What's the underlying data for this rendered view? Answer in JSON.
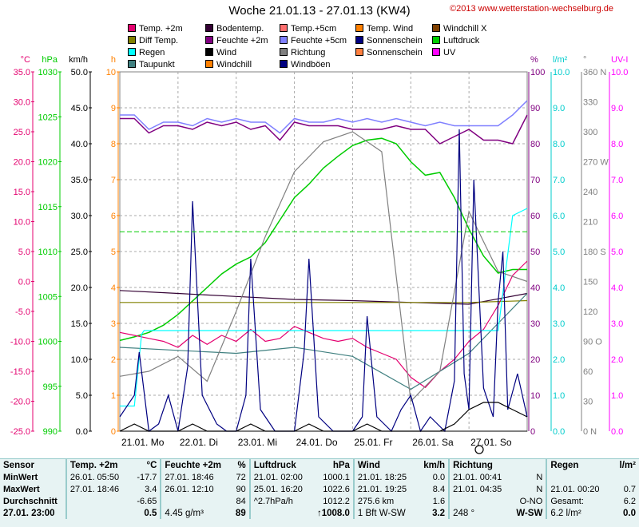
{
  "header": {
    "title": "Woche 21.01.13 - 27.01.13 (KW4)",
    "copyright": "©2013 www.wetterstation-wechselburg.de"
  },
  "legend": [
    {
      "label": "Temp. +2m",
      "color": "#e4006f"
    },
    {
      "label": "Bodentemp.",
      "color": "#330033"
    },
    {
      "label": "Temp.+5cm",
      "color": "#ff6f6f"
    },
    {
      "label": "Temp. Wind",
      "color": "#ff8000"
    },
    {
      "label": "Windchill X",
      "color": "#804000"
    },
    {
      "label": "Diff Temp.",
      "color": "#808000"
    },
    {
      "label": "Feuchte +2m",
      "color": "#800080"
    },
    {
      "label": "Feuchte +5cm",
      "color": "#8080ff"
    },
    {
      "label": "Sonnenschein",
      "color": "#000080"
    },
    {
      "label": "Luftdruck",
      "color": "#00cc00"
    },
    {
      "label": "Regen",
      "color": "#00ffff"
    },
    {
      "label": "Wind",
      "color": "#000000"
    },
    {
      "label": "Richtung",
      "color": "#808080"
    },
    {
      "label": "Sonnenschein",
      "color": "#ff8040"
    },
    {
      "label": "UV",
      "color": "#ff00ff"
    },
    {
      "label": "Taupunkt",
      "color": "#408080"
    },
    {
      "label": "Windchill",
      "color": "#ff8000"
    },
    {
      "label": "Windböen",
      "color": "#000080"
    }
  ],
  "axes": {
    "left": [
      {
        "unit": "°C",
        "color": "#e4006f",
        "ticks": [
          "35.0",
          "30.0",
          "25.0",
          "20.0",
          "15.0",
          "10.0",
          "5.0",
          "0.0",
          "-5.0",
          "-10.0",
          "-15.0",
          "-20.0",
          "-25.0"
        ]
      },
      {
        "unit": "hPa",
        "color": "#00cc00",
        "ticks": [
          "1030",
          "1025",
          "1020",
          "1015",
          "1010",
          "1005",
          "1000",
          "995",
          "990"
        ]
      },
      {
        "unit": "km/h",
        "color": "#000000",
        "ticks": [
          "50.0",
          "45.0",
          "40.0",
          "35.0",
          "30.0",
          "25.0",
          "20.0",
          "15.0",
          "10.0",
          "5.0",
          "0.0"
        ]
      },
      {
        "unit": "h",
        "color": "#ff8000",
        "ticks": [
          "10",
          "9",
          "8",
          "7",
          "6",
          "5",
          "4",
          "3",
          "2",
          "1",
          "0"
        ]
      }
    ],
    "right": [
      {
        "unit": "%",
        "color": "#800080",
        "ticks": [
          "100",
          "90",
          "80",
          "70",
          "60",
          "50",
          "40",
          "30",
          "20",
          "10",
          "0"
        ]
      },
      {
        "unit": "l/m²",
        "color": "#00cccc",
        "ticks": [
          "10.0",
          "9.0",
          "8.0",
          "7.0",
          "6.0",
          "5.0",
          "4.0",
          "3.0",
          "2.0",
          "1.0",
          "0.0"
        ]
      },
      {
        "unit": "°",
        "color": "#808080",
        "ticks": [
          "360 N",
          "330",
          "300",
          "270 W",
          "240",
          "210",
          "180 S",
          "150",
          "120",
          "90 O",
          "60",
          "30",
          "0 N"
        ]
      },
      {
        "unit": "UV-I",
        "color": "#ff00ff",
        "ticks": [
          "10.0",
          "9.0",
          "8.0",
          "7.0",
          "6.0",
          "5.0",
          "4.0",
          "3.0",
          "2.0",
          "1.0",
          "0.0"
        ]
      }
    ],
    "x": [
      "21.01. Mo",
      "22.01. Di",
      "23.01. Mi",
      "24.01. Do",
      "25.01. Fr",
      "26.01. Sa",
      "27.01. So"
    ]
  },
  "chart_data": {
    "type": "line",
    "title": "Woche 21.01.13 - 27.01.13 (KW4)",
    "x_range": [
      "21.01.13 00:00",
      "27.01.13 23:00"
    ],
    "x_unit": "hours since 21.01.13 00:00",
    "series": [
      {
        "name": "Feuchte +5cm",
        "axis": "%",
        "color": "#8080ff",
        "x": [
          0,
          6,
          12,
          18,
          24,
          30,
          36,
          42,
          48,
          54,
          60,
          66,
          72,
          78,
          84,
          90,
          96,
          102,
          108,
          114,
          120,
          126,
          132,
          138,
          144,
          150,
          156,
          162,
          168
        ],
        "y": [
          88,
          88,
          84,
          86,
          86,
          85,
          87,
          86,
          87,
          86,
          86,
          83,
          87,
          86,
          86,
          87,
          86,
          87,
          86,
          87,
          86,
          85,
          86,
          85,
          85,
          85,
          85,
          88,
          92
        ]
      },
      {
        "name": "Feuchte +2m",
        "axis": "%",
        "color": "#800080",
        "x": [
          0,
          6,
          12,
          18,
          24,
          30,
          36,
          42,
          48,
          54,
          60,
          66,
          72,
          78,
          84,
          90,
          96,
          102,
          108,
          114,
          120,
          126,
          132,
          138,
          144,
          150,
          156,
          162,
          168
        ],
        "y": [
          87,
          87,
          83,
          85,
          85,
          84,
          86,
          85,
          86,
          84,
          85,
          81,
          86,
          85,
          85,
          85,
          84,
          84,
          84,
          85,
          84,
          84,
          80,
          82,
          84,
          81,
          81,
          80,
          88
        ]
      },
      {
        "name": "Luftdruck",
        "axis": "hPa",
        "color": "#00cc00",
        "x": [
          0,
          6,
          12,
          18,
          24,
          30,
          36,
          42,
          48,
          54,
          60,
          66,
          72,
          78,
          84,
          90,
          96,
          102,
          108,
          114,
          120,
          126,
          132,
          138,
          144,
          150,
          156,
          162,
          168
        ],
        "y": [
          1000.1,
          1000.5,
          1001,
          1001.8,
          1003,
          1004.5,
          1006,
          1007.5,
          1008.6,
          1009.4,
          1011,
          1013.5,
          1016,
          1017.5,
          1019.3,
          1020.6,
          1021.8,
          1022.4,
          1022.6,
          1022,
          1020,
          1018.5,
          1018.8,
          1016,
          1012.5,
          1009.5,
          1007.6,
          1008,
          1008
        ]
      },
      {
        "name": "Temp. +2m",
        "axis": "°C",
        "color": "#e4006f",
        "x": [
          0,
          6,
          12,
          18,
          24,
          30,
          36,
          42,
          48,
          54,
          60,
          66,
          72,
          78,
          84,
          90,
          96,
          102,
          108,
          114,
          120,
          126,
          132,
          138,
          144,
          150,
          156,
          162,
          168
        ],
        "y": [
          -8.5,
          -9,
          -9.5,
          -10,
          -11,
          -9,
          -10.5,
          -9,
          -10,
          -8,
          -10,
          -9.5,
          -7.5,
          -8.5,
          -9.5,
          -10,
          -9.5,
          -11,
          -12,
          -13,
          -16,
          -17.7,
          -15,
          -13,
          -10,
          -8,
          -4,
          1,
          3.4
        ]
      },
      {
        "name": "Bodentemp.",
        "axis": "°C",
        "color": "#330033",
        "x": [
          0,
          24,
          48,
          72,
          96,
          120,
          144,
          168
        ],
        "y": [
          -1.5,
          -2,
          -2.5,
          -3,
          -3.2,
          -3.5,
          -3.8,
          -2
        ]
      },
      {
        "name": "Diff Temp.",
        "axis": "°C",
        "color": "#808000",
        "x": [
          0,
          24,
          48,
          72,
          96,
          120,
          144,
          168
        ],
        "y": [
          -3.5,
          -3.5,
          -3.5,
          -3.5,
          -3.5,
          -3.5,
          -3.5,
          -3.2
        ]
      },
      {
        "name": "Taupunkt",
        "axis": "°C",
        "color": "#408080",
        "x": [
          0,
          24,
          48,
          72,
          96,
          120,
          144,
          168
        ],
        "y": [
          -11,
          -11.5,
          -12,
          -11,
          -12.5,
          -18,
          -12,
          -2
        ]
      },
      {
        "name": "Regen",
        "axis": "l/m²",
        "color": "#00ffff",
        "x": [
          0,
          6,
          9,
          10,
          12,
          144,
          156,
          162,
          168
        ],
        "y": [
          0.7,
          0.7,
          2.7,
          2.8,
          2.8,
          2.8,
          2.8,
          6.0,
          6.2
        ]
      },
      {
        "name": "Richtung",
        "axis": "°",
        "color": "#808080",
        "x": [
          0,
          12,
          24,
          36,
          48,
          60,
          72,
          84,
          96,
          108,
          120,
          132,
          144,
          156,
          168
        ],
        "y": [
          55,
          60,
          75,
          50,
          120,
          195,
          260,
          290,
          300,
          280,
          30,
          60,
          220,
          160,
          150
        ]
      },
      {
        "name": "Windböen",
        "axis": "km/h",
        "color": "#000080",
        "x": [
          0,
          6,
          8,
          12,
          16,
          20,
          24,
          28,
          30,
          34,
          40,
          44,
          48,
          52,
          54,
          58,
          64,
          68,
          72,
          76,
          78,
          82,
          88,
          92,
          96,
          100,
          102,
          106,
          112,
          116,
          120,
          124,
          128,
          134,
          138,
          140,
          142,
          144,
          146,
          150,
          154,
          156,
          158,
          160,
          164,
          168
        ],
        "y": [
          2,
          5,
          11,
          0,
          1,
          5,
          0,
          9,
          32,
          5,
          1,
          0,
          0,
          5,
          24,
          3,
          0,
          0,
          0,
          11,
          24,
          2,
          0,
          0,
          0,
          2,
          16,
          2,
          0,
          3,
          5,
          0,
          2,
          0,
          7,
          42,
          8,
          3,
          35,
          6,
          2,
          18,
          25,
          3,
          8,
          2
        ]
      },
      {
        "name": "Wind",
        "axis": "km/h",
        "color": "#000000",
        "x": [
          0,
          6,
          12,
          24,
          30,
          36,
          48,
          54,
          60,
          72,
          78,
          84,
          96,
          102,
          108,
          120,
          132,
          138,
          144,
          150,
          156,
          162,
          168
        ],
        "y": [
          0,
          1,
          0,
          0,
          1,
          0,
          0,
          1,
          0,
          0,
          1,
          0,
          0,
          1,
          0,
          0,
          0,
          1,
          3,
          4,
          4,
          3,
          2
        ]
      }
    ]
  },
  "stats": {
    "headers": {
      "sensor": "Sensor",
      "temp": "Temp. +2m",
      "temp_unit": "°C",
      "hum": "Feuchte +2m",
      "hum_unit": "%",
      "press": "Luftdruck",
      "press_unit": "hPa",
      "wind": "Wind",
      "wind_unit": "km/h",
      "dir": "Richtung",
      "rain": "Regen",
      "rain_unit": "l/m²"
    },
    "rows": [
      {
        "label": "MinWert",
        "temp_time": "26.01. 05:50",
        "temp_val": "-17.7",
        "hum_time": "27.01. 18:46",
        "hum_val": "72",
        "press_time": "21.01. 02:00",
        "press_val": "1000.1",
        "wind_time": "21.01. 18:25",
        "wind_val": "0.0",
        "dir_time": "21.01. 00:41",
        "dir_val": "N",
        "rain_time": "",
        "rain_val": ""
      },
      {
        "label": "MaxWert",
        "temp_time": "27.01. 18:46",
        "temp_val": "3.4",
        "hum_time": "26.01. 12:10",
        "hum_val": "90",
        "press_time": "25.01. 16:20",
        "press_val": "1022.6",
        "wind_time": "21.01. 19:25",
        "wind_val": "8.4",
        "dir_time": "21.01. 04:35",
        "dir_val": "N",
        "rain_time": "21.01. 00:20",
        "rain_val": "0.7"
      },
      {
        "label": "Durchschnitt",
        "temp_time": "",
        "temp_val": "-6.65",
        "hum_time": "",
        "hum_val": "84",
        "press_time": "^2.7hPa/h",
        "press_val": "1012.2",
        "wind_time": "275.6 km",
        "wind_val": "1.6",
        "dir_time": "",
        "dir_val": "O-NO",
        "rain_time": "Gesamt:",
        "rain_val": "6.2"
      },
      {
        "label": "27.01. 23:00",
        "temp_time": "",
        "temp_val": "0.5",
        "hum_time": "4.45 g/m³",
        "hum_val": "89",
        "press_time": "",
        "press_val": "↑1008.0",
        "wind_time": "1 Bft W-SW",
        "wind_val": "3.2",
        "dir_time": "248 °",
        "dir_val": "W-SW",
        "rain_time": "6.2 l/m²",
        "rain_val": "0.0"
      }
    ]
  }
}
